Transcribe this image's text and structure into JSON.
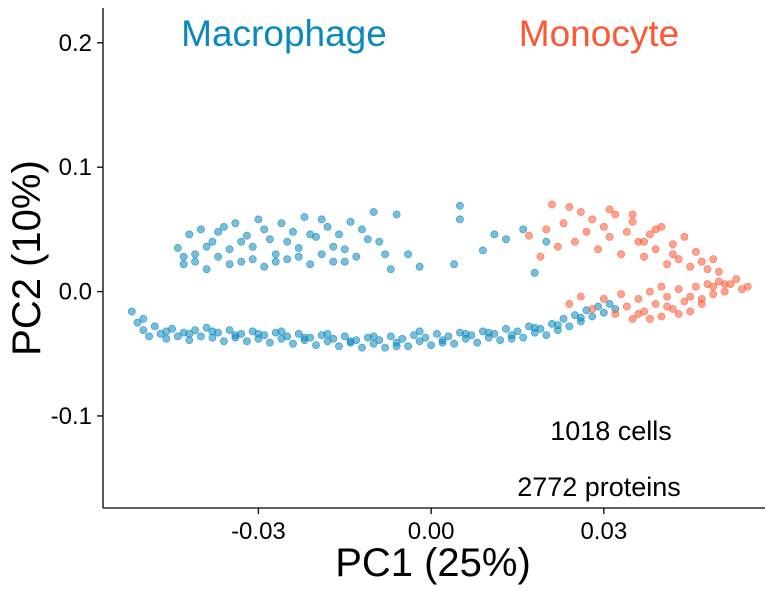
{
  "chart_data": {
    "type": "scatter",
    "xlabel": "PC1  (25%)",
    "ylabel": "PC2  (10%)",
    "xlim": [
      -0.057,
      0.058
    ],
    "ylim": [
      -0.174,
      0.228
    ],
    "x_ticks": [
      -0.03,
      0.0,
      0.03
    ],
    "x_tick_labels": [
      "-0.03",
      "0.00",
      "0.03"
    ],
    "y_ticks": [
      -0.1,
      0.0,
      0.1,
      0.2
    ],
    "y_tick_labels": [
      "-0.1",
      "0.0",
      "0.1",
      "0.2"
    ],
    "grid": false,
    "annotations": [
      "1018 cells",
      "2772 proteins"
    ],
    "series": [
      {
        "name": "Macrophage",
        "color": "#0a89bd",
        "points": [
          [
            -0.052,
            -0.016
          ],
          [
            -0.051,
            -0.025
          ],
          [
            -0.05,
            -0.031
          ],
          [
            -0.049,
            -0.036
          ],
          [
            -0.048,
            -0.028
          ],
          [
            -0.047,
            -0.034
          ],
          [
            -0.046,
            -0.038
          ],
          [
            -0.045,
            -0.03
          ],
          [
            -0.044,
            -0.036
          ],
          [
            -0.043,
            -0.033
          ],
          [
            -0.042,
            -0.039
          ],
          [
            -0.041,
            -0.031
          ],
          [
            -0.04,
            -0.036
          ],
          [
            -0.039,
            -0.029
          ],
          [
            -0.038,
            -0.037
          ],
          [
            -0.037,
            -0.033
          ],
          [
            -0.036,
            -0.04
          ],
          [
            -0.035,
            -0.031
          ],
          [
            -0.034,
            -0.037
          ],
          [
            -0.033,
            -0.034
          ],
          [
            -0.032,
            -0.04
          ],
          [
            -0.031,
            -0.032
          ],
          [
            -0.03,
            -0.038
          ],
          [
            -0.029,
            -0.035
          ],
          [
            -0.028,
            -0.041
          ],
          [
            -0.027,
            -0.033
          ],
          [
            -0.026,
            -0.038
          ],
          [
            -0.025,
            -0.036
          ],
          [
            -0.024,
            -0.042
          ],
          [
            -0.023,
            -0.034
          ],
          [
            -0.022,
            -0.039
          ],
          [
            -0.021,
            -0.037
          ],
          [
            -0.02,
            -0.043
          ],
          [
            -0.019,
            -0.035
          ],
          [
            -0.018,
            -0.04
          ],
          [
            -0.017,
            -0.038
          ],
          [
            -0.016,
            -0.044
          ],
          [
            -0.015,
            -0.036
          ],
          [
            -0.014,
            -0.041
          ],
          [
            -0.013,
            -0.039
          ],
          [
            -0.012,
            -0.045
          ],
          [
            -0.011,
            -0.037
          ],
          [
            -0.01,
            -0.042
          ],
          [
            -0.009,
            -0.039
          ],
          [
            -0.008,
            -0.045
          ],
          [
            -0.007,
            -0.036
          ],
          [
            -0.006,
            -0.041
          ],
          [
            -0.005,
            -0.038
          ],
          [
            -0.004,
            -0.044
          ],
          [
            -0.003,
            -0.035
          ],
          [
            -0.002,
            -0.04
          ],
          [
            -0.001,
            -0.037
          ],
          [
            0.0,
            -0.043
          ],
          [
            0.001,
            -0.034
          ],
          [
            0.002,
            -0.039
          ],
          [
            0.003,
            -0.036
          ],
          [
            0.004,
            -0.042
          ],
          [
            0.005,
            -0.033
          ],
          [
            0.006,
            -0.038
          ],
          [
            0.007,
            -0.035
          ],
          [
            0.008,
            -0.041
          ],
          [
            0.009,
            -0.032
          ],
          [
            0.01,
            -0.037
          ],
          [
            0.011,
            -0.034
          ],
          [
            0.012,
            -0.039
          ],
          [
            0.013,
            -0.03
          ],
          [
            0.014,
            -0.035
          ],
          [
            0.015,
            -0.032
          ],
          [
            0.016,
            -0.037
          ],
          [
            0.017,
            -0.028
          ],
          [
            0.018,
            -0.033
          ],
          [
            0.019,
            -0.03
          ],
          [
            0.02,
            -0.035
          ],
          [
            0.021,
            -0.026
          ],
          [
            0.022,
            -0.031
          ],
          [
            0.023,
            -0.022
          ],
          [
            0.024,
            -0.028
          ],
          [
            0.025,
            -0.019
          ],
          [
            0.026,
            -0.024
          ],
          [
            0.027,
            -0.015
          ],
          [
            0.028,
            -0.02
          ],
          [
            0.029,
            -0.012
          ],
          [
            0.03,
            -0.017
          ],
          [
            0.031,
            -0.01
          ],
          [
            0.032,
            -0.014
          ],
          [
            -0.05,
            -0.022
          ],
          [
            -0.046,
            -0.032
          ],
          [
            -0.042,
            -0.034
          ],
          [
            -0.038,
            -0.032
          ],
          [
            -0.034,
            -0.035
          ],
          [
            -0.03,
            -0.034
          ],
          [
            -0.026,
            -0.032
          ],
          [
            -0.022,
            -0.037
          ],
          [
            -0.018,
            -0.034
          ],
          [
            -0.014,
            -0.04
          ],
          [
            -0.01,
            -0.036
          ],
          [
            -0.006,
            -0.044
          ],
          [
            -0.002,
            -0.032
          ],
          [
            0.002,
            -0.041
          ],
          [
            0.006,
            -0.034
          ],
          [
            0.01,
            -0.033
          ],
          [
            0.014,
            -0.038
          ],
          [
            0.018,
            -0.029
          ],
          [
            0.022,
            -0.027
          ],
          [
            0.026,
            -0.021
          ],
          [
            -0.044,
            0.035
          ],
          [
            -0.043,
            0.022
          ],
          [
            -0.042,
            0.046
          ],
          [
            -0.041,
            0.03
          ],
          [
            -0.04,
            0.05
          ],
          [
            -0.039,
            0.018
          ],
          [
            -0.038,
            0.04
          ],
          [
            -0.037,
            0.028
          ],
          [
            -0.036,
            0.052
          ],
          [
            -0.035,
            0.034
          ],
          [
            -0.034,
            0.055
          ],
          [
            -0.033,
            0.024
          ],
          [
            -0.032,
            0.045
          ],
          [
            -0.031,
            0.036
          ],
          [
            -0.03,
            0.058
          ],
          [
            -0.029,
            0.02
          ],
          [
            -0.028,
            0.042
          ],
          [
            -0.027,
            0.03
          ],
          [
            -0.026,
            0.055
          ],
          [
            -0.025,
            0.026
          ],
          [
            -0.024,
            0.048
          ],
          [
            -0.023,
            0.035
          ],
          [
            -0.022,
            0.06
          ],
          [
            -0.021,
            0.022
          ],
          [
            -0.02,
            0.044
          ],
          [
            -0.019,
            0.03
          ],
          [
            -0.018,
            0.052
          ],
          [
            -0.017,
            0.024
          ],
          [
            -0.016,
            0.046
          ],
          [
            -0.015,
            0.034
          ],
          [
            -0.014,
            0.056
          ],
          [
            -0.013,
            0.028
          ],
          [
            -0.012,
            0.05
          ],
          [
            -0.011,
            0.042
          ],
          [
            -0.01,
            0.064
          ],
          [
            -0.043,
            0.028
          ],
          [
            -0.041,
            0.024
          ],
          [
            -0.039,
            0.036
          ],
          [
            -0.037,
            0.048
          ],
          [
            -0.035,
            0.022
          ],
          [
            -0.033,
            0.04
          ],
          [
            -0.031,
            0.026
          ],
          [
            -0.029,
            0.05
          ],
          [
            -0.027,
            0.024
          ],
          [
            -0.025,
            0.04
          ],
          [
            -0.023,
            0.028
          ],
          [
            -0.021,
            0.046
          ],
          [
            -0.019,
            0.058
          ],
          [
            -0.017,
            0.036
          ],
          [
            -0.015,
            0.024
          ],
          [
            -0.009,
            0.04
          ],
          [
            -0.008,
            0.03
          ],
          [
            -0.007,
            0.018
          ],
          [
            -0.006,
            0.062
          ],
          [
            -0.004,
            0.03
          ],
          [
            -0.002,
            0.02
          ],
          [
            0.005,
            0.069
          ],
          [
            0.005,
            0.058
          ],
          [
            0.004,
            0.022
          ],
          [
            0.009,
            0.033
          ],
          [
            0.011,
            0.046
          ],
          [
            0.013,
            0.042
          ],
          [
            0.016,
            0.05
          ],
          [
            0.018,
            0.015
          ],
          [
            0.02,
            0.04
          ]
        ]
      },
      {
        "name": "Monocyte",
        "color": "#ff5733",
        "points": [
          [
            0.017,
            0.045
          ],
          [
            0.019,
            0.028
          ],
          [
            0.02,
            0.05
          ],
          [
            0.021,
            0.07
          ],
          [
            0.022,
            0.036
          ],
          [
            0.023,
            0.055
          ],
          [
            0.024,
            0.068
          ],
          [
            0.025,
            0.04
          ],
          [
            0.026,
            0.064
          ],
          [
            0.027,
            0.048
          ],
          [
            0.028,
            0.058
          ],
          [
            0.029,
            0.034
          ],
          [
            0.03,
            0.052
          ],
          [
            0.031,
            0.044
          ],
          [
            0.032,
            0.062
          ],
          [
            0.033,
            0.03
          ],
          [
            0.034,
            0.048
          ],
          [
            0.035,
            0.056
          ],
          [
            0.036,
            0.04
          ],
          [
            0.037,
            0.028
          ],
          [
            0.038,
            0.046
          ],
          [
            0.039,
            0.034
          ],
          [
            0.04,
            0.052
          ],
          [
            0.041,
            0.022
          ],
          [
            0.042,
            0.038
          ],
          [
            0.043,
            0.026
          ],
          [
            0.044,
            0.044
          ],
          [
            0.045,
            0.02
          ],
          [
            0.046,
            0.032
          ],
          [
            0.047,
            0.024
          ],
          [
            0.048,
            0.018
          ],
          [
            0.049,
            0.026
          ],
          [
            0.05,
            0.016
          ],
          [
            0.024,
            -0.01
          ],
          [
            0.026,
            -0.004
          ],
          [
            0.028,
            -0.014
          ],
          [
            0.03,
            -0.006
          ],
          [
            0.032,
            -0.018
          ],
          [
            0.033,
            -0.002
          ],
          [
            0.034,
            -0.012
          ],
          [
            0.035,
            -0.022
          ],
          [
            0.036,
            -0.006
          ],
          [
            0.037,
            -0.016
          ],
          [
            0.038,
            0.0
          ],
          [
            0.039,
            -0.01
          ],
          [
            0.04,
            -0.02
          ],
          [
            0.041,
            -0.004
          ],
          [
            0.042,
            -0.014
          ],
          [
            0.043,
            0.002
          ],
          [
            0.044,
            -0.008
          ],
          [
            0.045,
            -0.016
          ],
          [
            0.046,
            0.004
          ],
          [
            0.047,
            -0.006
          ],
          [
            0.048,
            0.006
          ],
          [
            0.049,
            -0.002
          ],
          [
            0.05,
            0.008
          ],
          [
            0.051,
            0.0
          ],
          [
            0.052,
            0.006
          ],
          [
            0.053,
            0.01
          ],
          [
            0.054,
            0.002
          ],
          [
            0.055,
            0.004
          ],
          [
            0.038,
            -0.022
          ],
          [
            0.036,
            -0.018
          ],
          [
            0.041,
            -0.012
          ],
          [
            0.043,
            -0.018
          ],
          [
            0.045,
            -0.004
          ],
          [
            0.047,
            -0.01
          ],
          [
            0.049,
            0.004
          ],
          [
            0.051,
            0.006
          ],
          [
            0.04,
            0.004
          ],
          [
            0.037,
            0.04
          ],
          [
            0.039,
            0.05
          ],
          [
            0.042,
            0.03
          ],
          [
            0.035,
            0.062
          ],
          [
            0.031,
            0.066
          ]
        ]
      }
    ]
  }
}
